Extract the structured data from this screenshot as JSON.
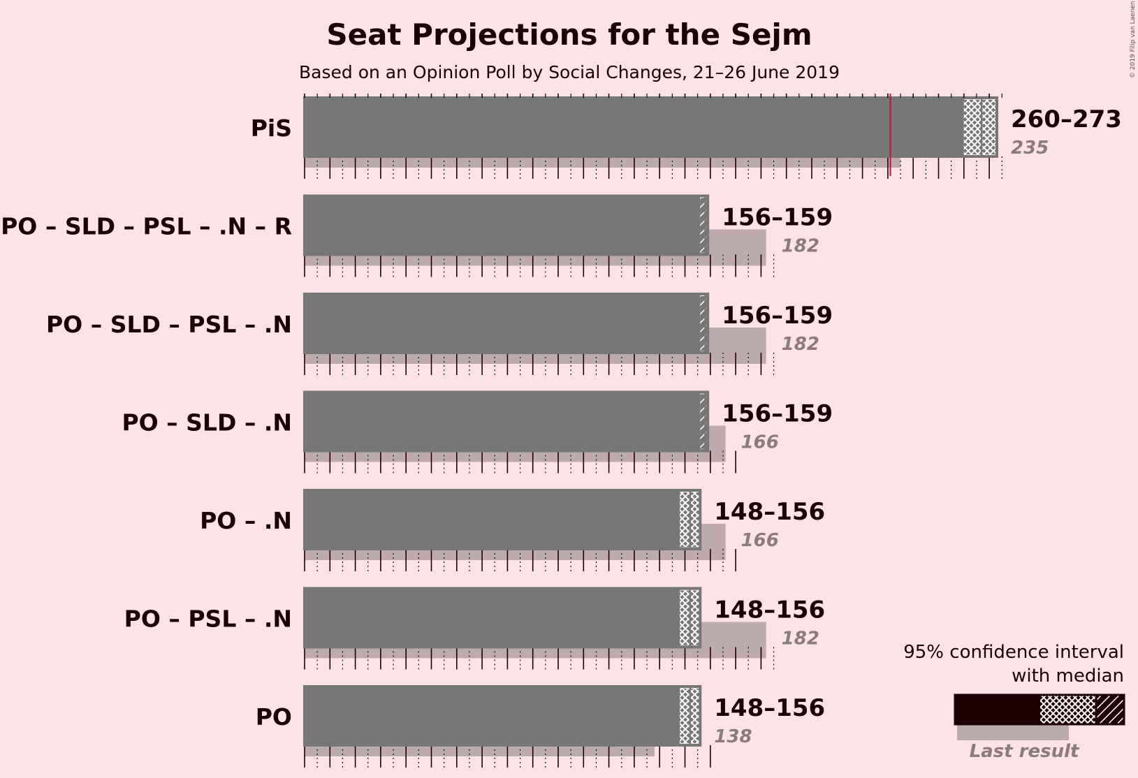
{
  "header": {
    "title": "Seat Projections for the Sejm",
    "subtitle": "Based on an Opinion Poll by Social Changes, 21–26 June 2019"
  },
  "copyright": "© 2019 Filip van Laenen",
  "legend": {
    "line1": "95% confidence interval",
    "line2": "with median",
    "last_result": "Last result"
  },
  "colors": {
    "background": "#fde3e6",
    "bar": "#767676",
    "last_result": "#bcaaad",
    "majority_line": "#c8102e",
    "text": "#1a0005",
    "legend_dark": "#1e0004"
  },
  "chart_data": {
    "type": "bar",
    "orientation": "horizontal",
    "majority": 231,
    "categories": [
      "PiS",
      "PO – SLD – PSL – .N – R",
      "PO – SLD – PSL – .N",
      "PO – SLD – .N",
      "PO – .N",
      "PO – PSL – .N",
      "PO"
    ],
    "series": [
      {
        "name": "95% confidence interval low",
        "values": [
          260,
          156,
          156,
          156,
          148,
          148,
          148
        ]
      },
      {
        "name": "95% confidence interval high",
        "values": [
          273,
          159,
          159,
          159,
          156,
          156,
          156
        ]
      },
      {
        "name": "Last result",
        "values": [
          235,
          182,
          182,
          166,
          166,
          182,
          138
        ]
      }
    ],
    "range_labels": [
      "260–273",
      "156–159",
      "156–159",
      "156–159",
      "148–156",
      "148–156",
      "148–156"
    ],
    "last_labels": [
      "235",
      "182",
      "182",
      "166",
      "166",
      "182",
      "138"
    ]
  }
}
